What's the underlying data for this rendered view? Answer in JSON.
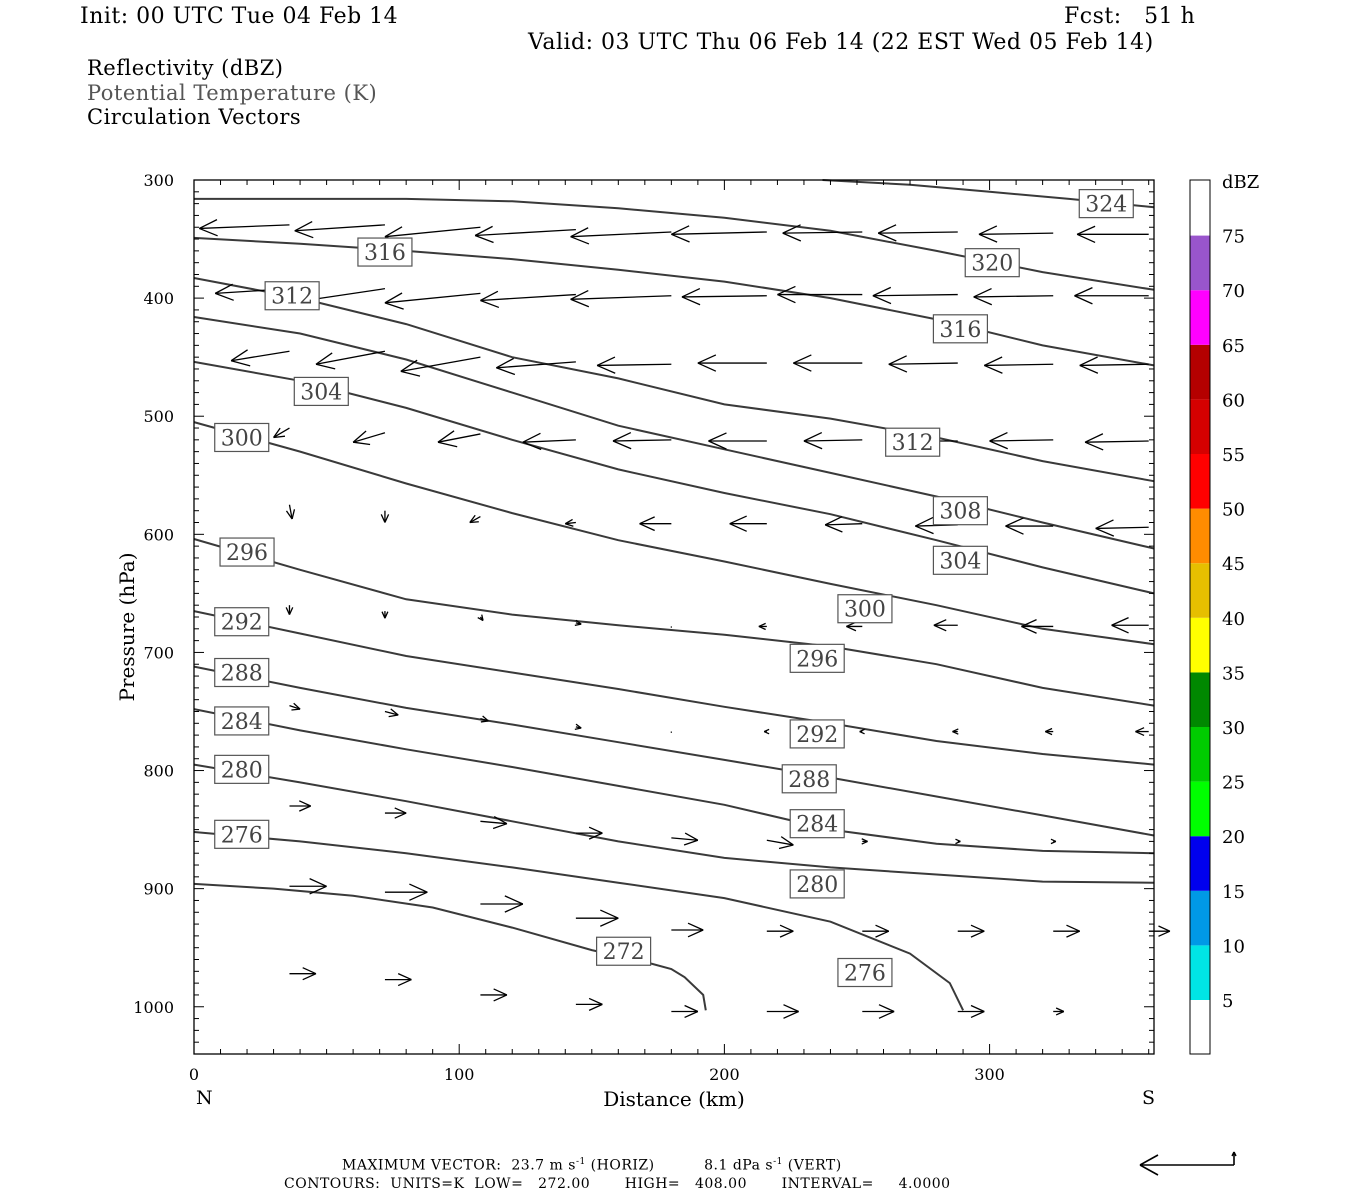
{
  "header": {
    "init": "Init: 00 UTC Tue 04 Feb 14",
    "fcst": "Fcst:   51 h",
    "valid": "Valid: 03 UTC Thu 06 Feb 14 (22 EST Wed 05 Feb 14)"
  },
  "fields": [
    "Reflectivity (dBZ)",
    "Potential Temperature (K)",
    "Circulation Vectors"
  ],
  "footer": {
    "vector_label": "MAXIMUM VECTOR:",
    "horiz_value": "23.7 m s",
    "horiz_unit": "(HORIZ)",
    "vert_value": "8.1 dPa s",
    "vert_unit": "(VERT)",
    "contours": "CONTOURS:  UNITS=K  LOW=   272.00       HIGH=   408.00       INTERVAL=     4.0000"
  },
  "chart_data": {
    "type": "line",
    "title": "",
    "xlabel": "Distance (km)",
    "ylabel": "Pressure (hPa)",
    "xlim": [
      0,
      362
    ],
    "ylim": [
      300,
      1040
    ],
    "y_inverted": true,
    "x_ticks": [
      0,
      100,
      200,
      300
    ],
    "y_ticks": [
      300,
      400,
      500,
      600,
      700,
      800,
      900,
      1000
    ],
    "x_end_labels": {
      "left": "N",
      "right": "S"
    },
    "colorbar": {
      "unit": "dBZ",
      "labels": [
        "5",
        "10",
        "15",
        "20",
        "25",
        "30",
        "35",
        "40",
        "45",
        "50",
        "55",
        "60",
        "65",
        "70",
        "75"
      ],
      "colors": [
        "#00e5e5",
        "#0099e6",
        "#0000ee",
        "#00ff00",
        "#00cc00",
        "#008800",
        "#ffff00",
        "#e6bf00",
        "#ff8c00",
        "#ff0000",
        "#d50000",
        "#b40000",
        "#ff00ff",
        "#9955cc"
      ]
    },
    "theta_series": [
      {
        "name": "272",
        "x": [
          0,
          30,
          60,
          90,
          120,
          150,
          170,
          180,
          185,
          192,
          193
        ],
        "y": [
          896,
          900,
          906,
          916,
          933,
          952,
          962,
          968,
          975,
          990,
          1003
        ]
      },
      {
        "name": "276",
        "x": [
          0,
          40,
          80,
          120,
          160,
          200,
          240,
          270,
          285,
          290
        ],
        "y": [
          852,
          860,
          870,
          882,
          895,
          908,
          928,
          955,
          980,
          1003
        ]
      },
      {
        "name": "280",
        "x": [
          0,
          40,
          80,
          120,
          160,
          200,
          240,
          280,
          320,
          362
        ],
        "y": [
          795,
          810,
          826,
          843,
          860,
          874,
          882,
          888,
          894,
          895
        ]
      },
      {
        "name": "284",
        "x": [
          0,
          40,
          80,
          120,
          160,
          200,
          240,
          280,
          320,
          362
        ],
        "y": [
          748,
          766,
          782,
          797,
          813,
          829,
          850,
          862,
          868,
          870
        ]
      },
      {
        "name": "288",
        "x": [
          0,
          40,
          80,
          120,
          160,
          200,
          240,
          280,
          320,
          362
        ],
        "y": [
          712,
          730,
          747,
          761,
          776,
          791,
          806,
          822,
          838,
          855
        ]
      },
      {
        "name": "292",
        "x": [
          0,
          40,
          80,
          120,
          160,
          200,
          240,
          280,
          320,
          362
        ],
        "y": [
          665,
          684,
          703,
          717,
          731,
          746,
          760,
          775,
          786,
          795
        ]
      },
      {
        "name": "296",
        "x": [
          0,
          40,
          80,
          120,
          160,
          200,
          240,
          280,
          320,
          362
        ],
        "y": [
          604,
          630,
          655,
          668,
          677,
          685,
          695,
          710,
          730,
          745
        ]
      },
      {
        "name": "300",
        "x": [
          0,
          40,
          80,
          120,
          160,
          200,
          240,
          280,
          320,
          362
        ],
        "y": [
          505,
          530,
          557,
          582,
          605,
          623,
          642,
          660,
          680,
          693
        ]
      },
      {
        "name": "304",
        "x": [
          0,
          40,
          80,
          120,
          160,
          200,
          240,
          280,
          320,
          362
        ],
        "y": [
          454,
          470,
          493,
          520,
          545,
          565,
          583,
          605,
          628,
          650
        ]
      },
      {
        "name": "308",
        "x": [
          0,
          40,
          80,
          120,
          160,
          200,
          240,
          280,
          320,
          362
        ],
        "y": [
          416,
          430,
          452,
          480,
          508,
          528,
          548,
          568,
          590,
          612
        ]
      },
      {
        "name": "312",
        "x": [
          0,
          40,
          80,
          120,
          160,
          200,
          240,
          280,
          320,
          362
        ],
        "y": [
          383,
          400,
          422,
          450,
          468,
          490,
          502,
          518,
          538,
          555
        ]
      },
      {
        "name": "316",
        "x": [
          0,
          40,
          80,
          120,
          160,
          200,
          240,
          280,
          320,
          362
        ],
        "y": [
          349,
          354,
          360,
          367,
          376,
          386,
          400,
          418,
          440,
          457
        ]
      },
      {
        "name": "320",
        "x": [
          0,
          40,
          80,
          120,
          160,
          200,
          240,
          280,
          320,
          362
        ],
        "y": [
          316,
          316,
          316,
          318,
          324,
          332,
          343,
          360,
          378,
          393
        ]
      },
      {
        "name": "324",
        "x": [
          237,
          270,
          300,
          330,
          362
        ],
        "y": [
          300,
          304,
          310,
          316,
          323
        ]
      }
    ],
    "contour_labels": [
      {
        "text": "272",
        "x": 162,
        "y": 953
      },
      {
        "text": "276",
        "x": 253,
        "y": 971
      },
      {
        "text": "280",
        "x": 235,
        "y": 896
      },
      {
        "text": "280",
        "x": 18,
        "y": 799
      },
      {
        "text": "276",
        "x": 18,
        "y": 854
      },
      {
        "text": "284",
        "x": 235,
        "y": 845
      },
      {
        "text": "284",
        "x": 18,
        "y": 758
      },
      {
        "text": "288",
        "x": 232,
        "y": 807
      },
      {
        "text": "288",
        "x": 18,
        "y": 717
      },
      {
        "text": "292",
        "x": 235,
        "y": 769
      },
      {
        "text": "292",
        "x": 18,
        "y": 674
      },
      {
        "text": "296",
        "x": 235,
        "y": 705
      },
      {
        "text": "296",
        "x": 20,
        "y": 615
      },
      {
        "text": "300",
        "x": 253,
        "y": 663
      },
      {
        "text": "300",
        "x": 18,
        "y": 518
      },
      {
        "text": "304",
        "x": 289,
        "y": 622
      },
      {
        "text": "304",
        "x": 48,
        "y": 479
      },
      {
        "text": "308",
        "x": 289,
        "y": 580
      },
      {
        "text": "312",
        "x": 271,
        "y": 522
      },
      {
        "text": "312",
        "x": 37,
        "y": 398
      },
      {
        "text": "316",
        "x": 289,
        "y": 426
      },
      {
        "text": "316",
        "x": 72,
        "y": 361
      },
      {
        "text": "320",
        "x": 301,
        "y": 370
      },
      {
        "text": "324",
        "x": 344,
        "y": 320
      }
    ],
    "vectors": [
      {
        "x": 36,
        "p": 338,
        "dx": -34,
        "dp": 3
      },
      {
        "x": 72,
        "p": 338,
        "dx": -34,
        "dp": 5
      },
      {
        "x": 108,
        "p": 340,
        "dx": -36,
        "dp": 8
      },
      {
        "x": 144,
        "p": 342,
        "dx": -38,
        "dp": 5
      },
      {
        "x": 180,
        "p": 344,
        "dx": -38,
        "dp": 4
      },
      {
        "x": 216,
        "p": 344,
        "dx": -36,
        "dp": 2
      },
      {
        "x": 252,
        "p": 344,
        "dx": -30,
        "dp": 1
      },
      {
        "x": 288,
        "p": 344,
        "dx": -30,
        "dp": 1
      },
      {
        "x": 324,
        "p": 345,
        "dx": -28,
        "dp": 1
      },
      {
        "x": 360,
        "p": 346,
        "dx": -27,
        "dp": 0
      },
      {
        "x": 36,
        "p": 392,
        "dx": -28,
        "dp": 4
      },
      {
        "x": 72,
        "p": 392,
        "dx": -36,
        "dp": 12
      },
      {
        "x": 108,
        "p": 396,
        "dx": -36,
        "dp": 8
      },
      {
        "x": 144,
        "p": 397,
        "dx": -36,
        "dp": 5
      },
      {
        "x": 180,
        "p": 398,
        "dx": -38,
        "dp": 3
      },
      {
        "x": 216,
        "p": 398,
        "dx": -32,
        "dp": 1
      },
      {
        "x": 252,
        "p": 397,
        "dx": -32,
        "dp": 0
      },
      {
        "x": 288,
        "p": 397,
        "dx": -32,
        "dp": 1
      },
      {
        "x": 324,
        "p": 398,
        "dx": -30,
        "dp": 1
      },
      {
        "x": 360,
        "p": 398,
        "dx": -28,
        "dp": 0
      },
      {
        "x": 36,
        "p": 445,
        "dx": -22,
        "dp": 8
      },
      {
        "x": 72,
        "p": 445,
        "dx": -26,
        "dp": 11
      },
      {
        "x": 108,
        "p": 450,
        "dx": -30,
        "dp": 12
      },
      {
        "x": 144,
        "p": 454,
        "dx": -30,
        "dp": 5
      },
      {
        "x": 180,
        "p": 456,
        "dx": -28,
        "dp": 1
      },
      {
        "x": 216,
        "p": 455,
        "dx": -26,
        "dp": 0
      },
      {
        "x": 252,
        "p": 455,
        "dx": -26,
        "dp": 0
      },
      {
        "x": 288,
        "p": 455,
        "dx": -26,
        "dp": 1
      },
      {
        "x": 324,
        "p": 456,
        "dx": -26,
        "dp": 1
      },
      {
        "x": 360,
        "p": 456,
        "dx": -26,
        "dp": 1
      },
      {
        "x": 36,
        "p": 510,
        "dx": -6,
        "dp": 8
      },
      {
        "x": 72,
        "p": 514,
        "dx": -12,
        "dp": 8
      },
      {
        "x": 108,
        "p": 515,
        "dx": -16,
        "dp": 7
      },
      {
        "x": 144,
        "p": 520,
        "dx": -20,
        "dp": 2
      },
      {
        "x": 180,
        "p": 520,
        "dx": -22,
        "dp": 1
      },
      {
        "x": 216,
        "p": 521,
        "dx": -22,
        "dp": 0
      },
      {
        "x": 252,
        "p": 520,
        "dx": -22,
        "dp": 1
      },
      {
        "x": 288,
        "p": 521,
        "dx": -24,
        "dp": 0
      },
      {
        "x": 324,
        "p": 520,
        "dx": -24,
        "dp": 1
      },
      {
        "x": 360,
        "p": 521,
        "dx": -24,
        "dp": 1
      },
      {
        "x": 36,
        "p": 575,
        "dx": 1,
        "dp": 12
      },
      {
        "x": 72,
        "p": 580,
        "dx": 0,
        "dp": 10
      },
      {
        "x": 108,
        "p": 585,
        "dx": -4,
        "dp": 5
      },
      {
        "x": 144,
        "p": 590,
        "dx": -4,
        "dp": 1
      },
      {
        "x": 180,
        "p": 591,
        "dx": -12,
        "dp": 0
      },
      {
        "x": 216,
        "p": 591,
        "dx": -14,
        "dp": 0
      },
      {
        "x": 252,
        "p": 591,
        "dx": -14,
        "dp": 1
      },
      {
        "x": 288,
        "p": 592,
        "dx": -16,
        "dp": 1
      },
      {
        "x": 324,
        "p": 593,
        "dx": -18,
        "dp": 0
      },
      {
        "x": 360,
        "p": 594,
        "dx": -20,
        "dp": 1
      },
      {
        "x": 36,
        "p": 660,
        "dx": 0,
        "dp": 8
      },
      {
        "x": 72,
        "p": 665,
        "dx": 0,
        "dp": 6
      },
      {
        "x": 108,
        "p": 670,
        "dx": 1,
        "dp": 3
      },
      {
        "x": 144,
        "p": 675,
        "dx": 2,
        "dp": 1
      },
      {
        "x": 180,
        "p": 678,
        "dx": 0,
        "dp": 1
      },
      {
        "x": 216,
        "p": 678,
        "dx": -3,
        "dp": 0
      },
      {
        "x": 252,
        "p": 678,
        "dx": -6,
        "dp": 0
      },
      {
        "x": 288,
        "p": 677,
        "dx": -9,
        "dp": 0
      },
      {
        "x": 324,
        "p": 678,
        "dx": -12,
        "dp": 0
      },
      {
        "x": 360,
        "p": 677,
        "dx": -14,
        "dp": 0
      },
      {
        "x": 36,
        "p": 745,
        "dx": 4,
        "dp": 3
      },
      {
        "x": 72,
        "p": 750,
        "dx": 5,
        "dp": 3
      },
      {
        "x": 108,
        "p": 756,
        "dx": 3,
        "dp": 2
      },
      {
        "x": 144,
        "p": 763,
        "dx": 2,
        "dp": 1
      },
      {
        "x": 180,
        "p": 767,
        "dx": 0,
        "dp": 1
      },
      {
        "x": 216,
        "p": 767,
        "dx": -1,
        "dp": 0
      },
      {
        "x": 252,
        "p": 767,
        "dx": -1,
        "dp": 0
      },
      {
        "x": 288,
        "p": 767,
        "dx": -2,
        "dp": 0
      },
      {
        "x": 324,
        "p": 767,
        "dx": -3,
        "dp": 0
      },
      {
        "x": 360,
        "p": 767,
        "dx": -5,
        "dp": 0
      },
      {
        "x": 36,
        "p": 830,
        "dx": 8,
        "dp": 0
      },
      {
        "x": 72,
        "p": 836,
        "dx": 8,
        "dp": 0
      },
      {
        "x": 108,
        "p": 843,
        "dx": 10,
        "dp": 2
      },
      {
        "x": 144,
        "p": 853,
        "dx": 10,
        "dp": 0
      },
      {
        "x": 180,
        "p": 857,
        "dx": 10,
        "dp": 2
      },
      {
        "x": 216,
        "p": 859,
        "dx": 10,
        "dp": 4
      },
      {
        "x": 252,
        "p": 860,
        "dx": 2,
        "dp": 0
      },
      {
        "x": 288,
        "p": 860,
        "dx": 1,
        "dp": 0
      },
      {
        "x": 324,
        "p": 860,
        "dx": 1,
        "dp": 0
      },
      {
        "x": 36,
        "p": 898,
        "dx": 14,
        "dp": 0
      },
      {
        "x": 72,
        "p": 903,
        "dx": 16,
        "dp": 0
      },
      {
        "x": 108,
        "p": 913,
        "dx": 16,
        "dp": 0
      },
      {
        "x": 144,
        "p": 925,
        "dx": 16,
        "dp": 0
      },
      {
        "x": 180,
        "p": 935,
        "dx": 12,
        "dp": 0
      },
      {
        "x": 216,
        "p": 936,
        "dx": 10,
        "dp": 0
      },
      {
        "x": 252,
        "p": 936,
        "dx": 10,
        "dp": 0
      },
      {
        "x": 288,
        "p": 936,
        "dx": 10,
        "dp": 0
      },
      {
        "x": 324,
        "p": 936,
        "dx": 10,
        "dp": 0
      },
      {
        "x": 360,
        "p": 936,
        "dx": 8,
        "dp": 0
      },
      {
        "x": 36,
        "p": 972,
        "dx": 10,
        "dp": 0
      },
      {
        "x": 72,
        "p": 977,
        "dx": 10,
        "dp": 0
      },
      {
        "x": 108,
        "p": 990,
        "dx": 10,
        "dp": 0
      },
      {
        "x": 144,
        "p": 998,
        "dx": 10,
        "dp": 0
      },
      {
        "x": 180,
        "p": 1004,
        "dx": 10,
        "dp": 0
      },
      {
        "x": 216,
        "p": 1004,
        "dx": 12,
        "dp": 0
      },
      {
        "x": 252,
        "p": 1004,
        "dx": 12,
        "dp": 0
      },
      {
        "x": 288,
        "p": 1004,
        "dx": 10,
        "dp": 0
      },
      {
        "x": 324,
        "p": 1004,
        "dx": 4,
        "dp": 0
      }
    ]
  }
}
